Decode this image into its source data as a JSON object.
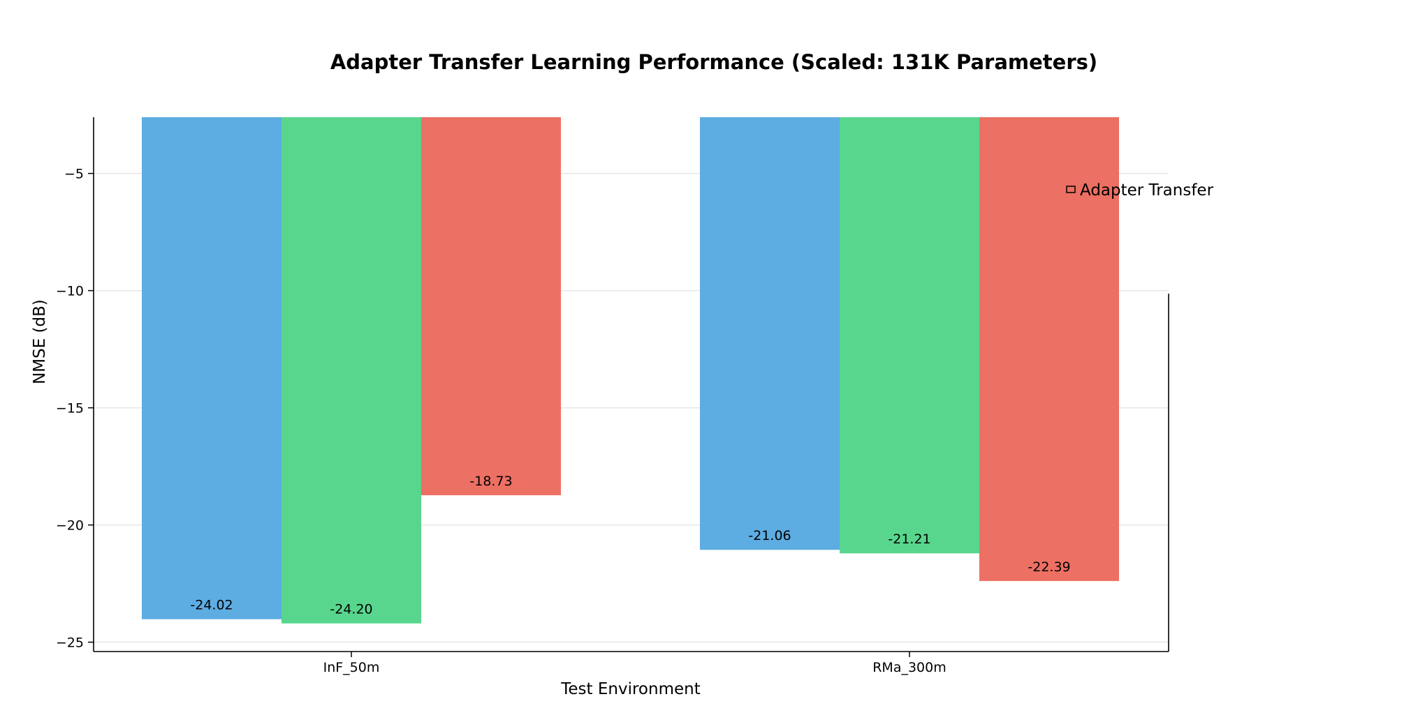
{
  "chart_data": {
    "type": "bar",
    "title": "Adapter Transfer Learning Performance (Scaled: 131K Parameters)",
    "xlabel": "Test Environment",
    "ylabel": "NMSE (dB)",
    "categories": [
      "InF_50m",
      "RMa_300m"
    ],
    "series": [
      {
        "values": [
          -24.02,
          -21.06
        ],
        "color": "#5dade2"
      },
      {
        "values": [
          -24.2,
          -21.21
        ],
        "color": "#58d68d"
      },
      {
        "name": "Adapter Transfer",
        "values": [
          -18.73,
          -22.39
        ],
        "color": "#ec7063"
      }
    ],
    "value_labels": [
      [
        "-24.02",
        "-21.06"
      ],
      [
        "-24.20",
        "-21.21"
      ],
      [
        "-18.73",
        "-22.39"
      ]
    ],
    "yticks": [
      -5,
      -10,
      -15,
      -20,
      -25
    ],
    "ytick_labels": [
      "−5",
      "−10",
      "−15",
      "−20",
      "−25"
    ],
    "ylim": [
      -25.4,
      -2.6
    ],
    "grid": true,
    "legend_position": "upper-right"
  }
}
